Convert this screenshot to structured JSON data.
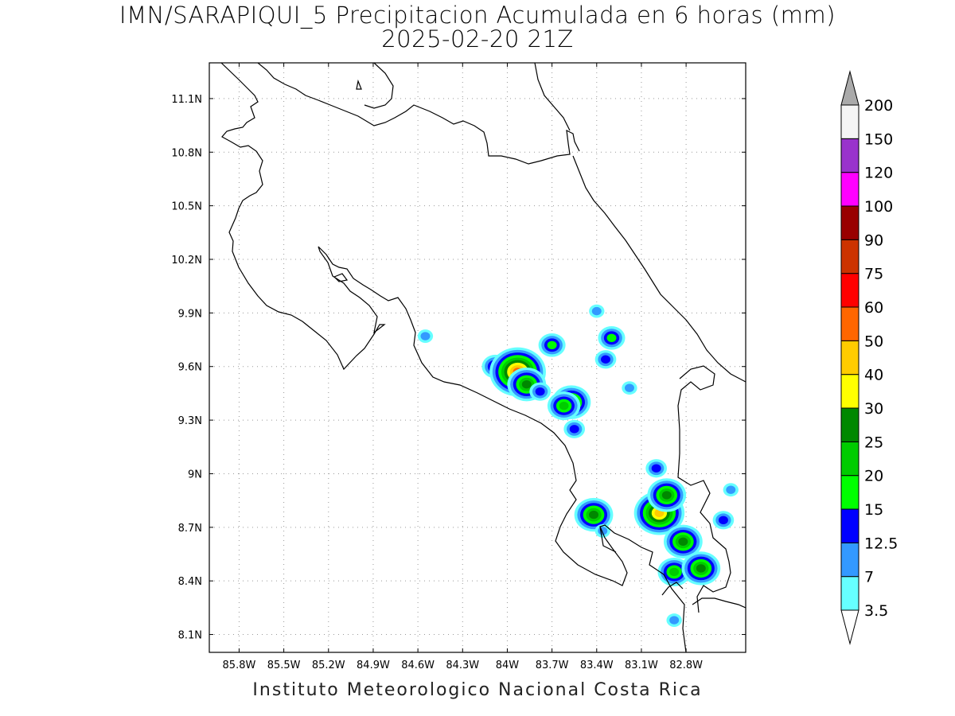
{
  "title": {
    "line1": "IMN/SARAPIQUI_5 Precipitacion Acumulada en 6 horas (mm)",
    "line2": "2025-02-20 21Z"
  },
  "footer": "Instituto Meteorologico Nacional Costa Rica",
  "map": {
    "lon_range": [
      -86.0,
      -82.4
    ],
    "lat_range": [
      8.0,
      11.3
    ],
    "lon_ticks": [
      "85.8W",
      "85.5W",
      "85.2W",
      "84.9W",
      "84.6W",
      "84.3W",
      "84W",
      "83.7W",
      "83.4W",
      "83.1W",
      "82.8W"
    ],
    "lon_tick_values": [
      -85.8,
      -85.5,
      -85.2,
      -84.9,
      -84.6,
      -84.3,
      -84.0,
      -83.7,
      -83.4,
      -83.1,
      -82.8
    ],
    "lat_ticks": [
      "8.1N",
      "8.4N",
      "8.7N",
      "9N",
      "9.3N",
      "9.6N",
      "9.9N",
      "10.2N",
      "10.5N",
      "10.8N",
      "11.1N"
    ],
    "lat_tick_values": [
      8.1,
      8.4,
      8.7,
      9.0,
      9.3,
      9.6,
      9.9,
      10.2,
      10.5,
      10.8,
      11.1
    ],
    "gridlines": "dotted"
  },
  "colorbar": {
    "labels": [
      "3.5",
      "7",
      "12.5",
      "15",
      "20",
      "25",
      "30",
      "40",
      "50",
      "60",
      "75",
      "90",
      "100",
      "120",
      "150",
      "200"
    ],
    "colors": [
      "#66ffff",
      "#3399ff",
      "#0000ff",
      "#00ff00",
      "#00cc00",
      "#008800",
      "#ffff00",
      "#ffcc00",
      "#ff6600",
      "#ff0000",
      "#cc3300",
      "#990000",
      "#ff00ff",
      "#9933cc",
      "#f5f5f5",
      "#aaaaaa"
    ],
    "under_color": "#ffffff",
    "over_color": "#aaaaaa"
  },
  "precip_cells": [
    {
      "lon": -84.55,
      "lat": 9.77,
      "level": 1
    },
    {
      "lon": -84.08,
      "lat": 9.6,
      "level": 3
    },
    {
      "lon": -83.93,
      "lat": 9.57,
      "level": 8
    },
    {
      "lon": -83.87,
      "lat": 9.5,
      "level": 5
    },
    {
      "lon": -83.78,
      "lat": 9.46,
      "level": 2
    },
    {
      "lon": -83.7,
      "lat": 9.72,
      "level": 3
    },
    {
      "lon": -83.57,
      "lat": 9.4,
      "level": 5
    },
    {
      "lon": -83.62,
      "lat": 9.38,
      "level": 4
    },
    {
      "lon": -83.55,
      "lat": 9.25,
      "level": 2
    },
    {
      "lon": -83.4,
      "lat": 9.91,
      "level": 1
    },
    {
      "lon": -83.3,
      "lat": 9.76,
      "level": 3
    },
    {
      "lon": -83.34,
      "lat": 9.64,
      "level": 2
    },
    {
      "lon": -83.18,
      "lat": 9.48,
      "level": 1
    },
    {
      "lon": -83.42,
      "lat": 8.77,
      "level": 5
    },
    {
      "lon": -83.36,
      "lat": 8.68,
      "level": 1
    },
    {
      "lon": -82.98,
      "lat": 8.78,
      "level": 7
    },
    {
      "lon": -82.93,
      "lat": 8.88,
      "level": 5
    },
    {
      "lon": -83.0,
      "lat": 9.03,
      "level": 2
    },
    {
      "lon": -82.82,
      "lat": 8.62,
      "level": 5
    },
    {
      "lon": -82.88,
      "lat": 8.45,
      "level": 4
    },
    {
      "lon": -82.7,
      "lat": 8.47,
      "level": 5
    },
    {
      "lon": -82.55,
      "lat": 8.74,
      "level": 2
    },
    {
      "lon": -82.5,
      "lat": 8.91,
      "level": 1
    },
    {
      "lon": -82.88,
      "lat": 8.18,
      "level": 1
    }
  ]
}
